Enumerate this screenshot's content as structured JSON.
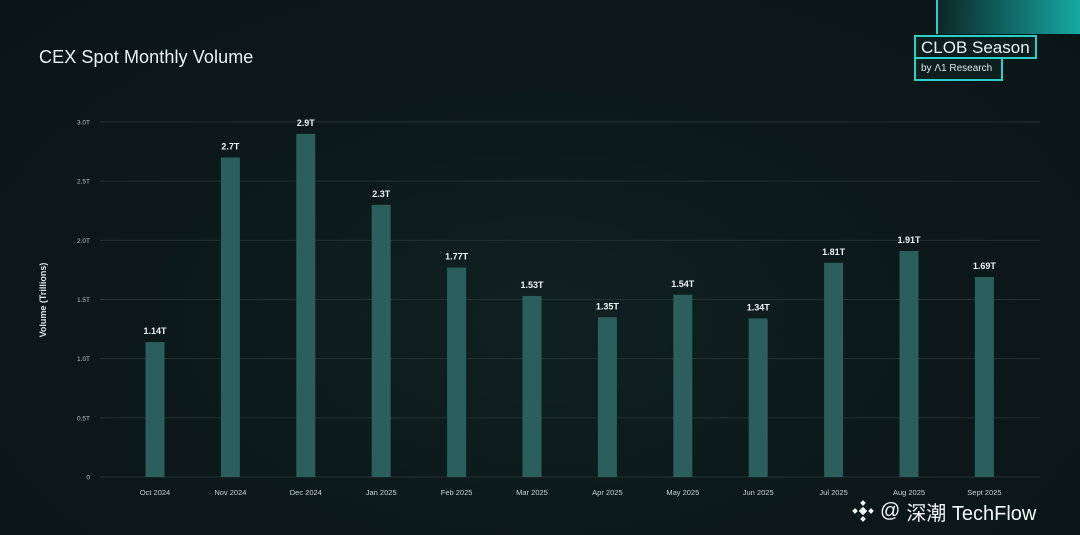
{
  "header": {
    "title": "CEX Spot Monthly Volume"
  },
  "brand": {
    "name": "CLOB Season",
    "byline": "by Λ1 Research"
  },
  "watermark": {
    "at": "@",
    "text": "深潮 TechFlow",
    "logo_icon": "diamond-logo-icon"
  },
  "colors": {
    "background": "#0c1819",
    "bar": "#2a5f5c",
    "accent": "#2bd0c8",
    "grid": "#243233"
  },
  "chart_data": {
    "type": "bar",
    "title": "CEX Spot Monthly Volume",
    "xlabel": "",
    "ylabel": "Volume (Trillions)",
    "ylim": [
      0,
      3.0
    ],
    "yticks": [
      0,
      0.5,
      1.0,
      1.5,
      2.0,
      2.5,
      3.0
    ],
    "ytick_labels": [
      "0",
      "0.5T",
      "1.0T",
      "1.5T",
      "2.0T",
      "2.5T",
      "3.0T"
    ],
    "grid": true,
    "categories": [
      "Oct 2024",
      "Nov 2024",
      "Dec 2024",
      "Jan 2025",
      "Feb 2025",
      "Mar 2025",
      "Apr 2025",
      "May 2025",
      "Jun 2025",
      "Jul 2025",
      "Aug 2025",
      "Sept  2025"
    ],
    "values": [
      1.14,
      2.7,
      2.9,
      2.3,
      1.77,
      1.53,
      1.35,
      1.54,
      1.34,
      1.81,
      1.91,
      1.69
    ],
    "data_labels": [
      "1.14T",
      "2.7T",
      "2.9T",
      "2.3T",
      "1.77T",
      "1.53T",
      "1.35T",
      "1.54T",
      "1.34T",
      "1.81T",
      "1.91T",
      "1.69T"
    ]
  }
}
